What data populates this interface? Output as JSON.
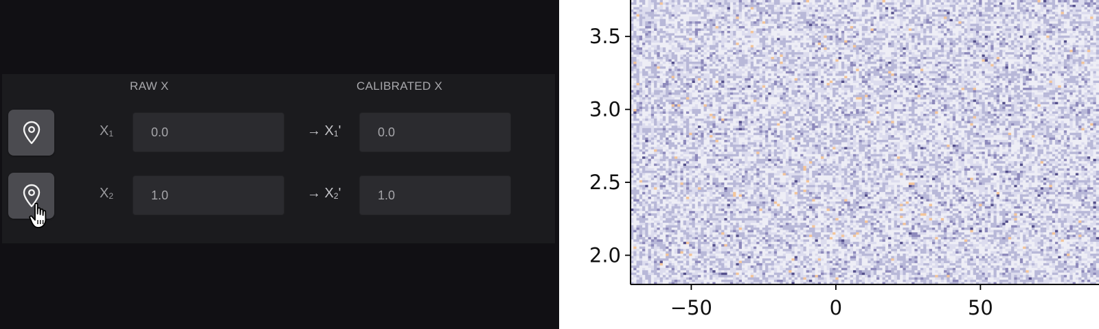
{
  "calibration": {
    "raw_header": "RAW X",
    "calibrated_header": "CALIBRATED X",
    "rows": [
      {
        "label_main": "X",
        "label_sub": "1",
        "raw_value": "0.0",
        "arrow_main": "→ X",
        "arrow_sub": "1",
        "arrow_suffix": "'",
        "calibrated_value": "0.0",
        "pin_icon": "map-pin-icon"
      },
      {
        "label_main": "X",
        "label_sub": "2",
        "raw_value": "1.0",
        "arrow_main": "→ X",
        "arrow_sub": "2",
        "arrow_suffix": "'",
        "calibrated_value": "1.0",
        "pin_icon": "map-pin-icon"
      }
    ]
  },
  "chart_data": {
    "type": "heatmap",
    "title": "",
    "xlabel": "",
    "ylabel": "",
    "x_ticks": [
      "−50",
      "0",
      "50"
    ],
    "x_tick_values": [
      -50,
      0,
      50
    ],
    "y_ticks": [
      "2.0",
      "2.5",
      "3.0",
      "3.5"
    ],
    "y_tick_values": [
      2.0,
      2.5,
      3.0,
      3.5
    ],
    "xlim": [
      -71,
      91
    ],
    "ylim": [
      1.8,
      3.75
    ],
    "colormap": "pale lavender noise with occasional orange and dark purple streaks",
    "colors": {
      "base": "#dcdcee",
      "light": "#eeeef6",
      "mid": "#b8b8d8",
      "dark": "#55508c",
      "warm": "#f3c59a"
    },
    "grid": false
  }
}
